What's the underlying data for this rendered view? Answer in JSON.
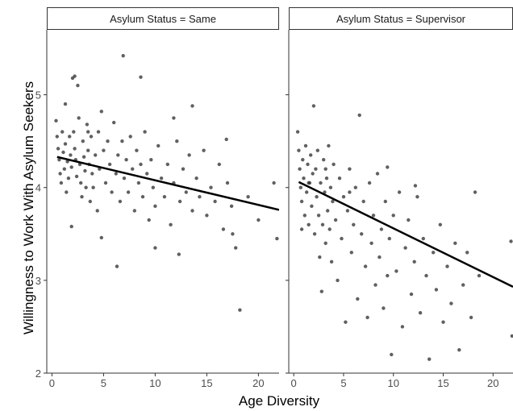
{
  "chart_data": {
    "type": "scatter",
    "xlabel": "Age Diversity",
    "ylabel": "Willingness to Work With Asylum Seekers",
    "xlim": [
      -0.5,
      22
    ],
    "ylim": [
      2,
      5.7
    ],
    "x_ticks": [
      "0",
      "5",
      "10",
      "15",
      "20"
    ],
    "y_ticks": [
      "2",
      "3",
      "4",
      "5"
    ],
    "grid": false,
    "point_color": "#333333",
    "line_color": "#000000",
    "panels": [
      {
        "label": "Asylum Status = Same",
        "fit_line": {
          "x": [
            0.5,
            22
          ],
          "y": [
            4.33,
            3.76
          ]
        },
        "points": [
          [
            0.4,
            4.72
          ],
          [
            0.5,
            4.55
          ],
          [
            0.6,
            4.42
          ],
          [
            0.7,
            4.3
          ],
          [
            0.8,
            4.15
          ],
          [
            0.9,
            4.05
          ],
          [
            1.0,
            4.6
          ],
          [
            1.1,
            4.38
          ],
          [
            1.2,
            4.2
          ],
          [
            1.3,
            4.47
          ],
          [
            1.4,
            3.95
          ],
          [
            1.5,
            4.28
          ],
          [
            1.6,
            4.1
          ],
          [
            1.7,
            4.55
          ],
          [
            1.8,
            4.35
          ],
          [
            1.9,
            4.22
          ],
          [
            2.0,
            5.18
          ],
          [
            2.1,
            4.6
          ],
          [
            2.2,
            4.42
          ],
          [
            2.3,
            4.3
          ],
          [
            2.4,
            4.12
          ],
          [
            2.5,
            5.1
          ],
          [
            2.6,
            4.75
          ],
          [
            2.7,
            4.25
          ],
          [
            2.8,
            4.05
          ],
          [
            2.9,
            3.9
          ],
          [
            3.0,
            4.5
          ],
          [
            3.1,
            4.33
          ],
          [
            3.2,
            4.18
          ],
          [
            3.3,
            4.0
          ],
          [
            3.4,
            4.68
          ],
          [
            3.5,
            4.4
          ],
          [
            3.6,
            4.25
          ],
          [
            3.7,
            3.85
          ],
          [
            3.8,
            4.55
          ],
          [
            3.9,
            4.15
          ],
          [
            4.0,
            4.0
          ],
          [
            4.2,
            4.35
          ],
          [
            4.4,
            3.75
          ],
          [
            4.5,
            4.6
          ],
          [
            4.6,
            4.2
          ],
          [
            4.8,
            4.82
          ],
          [
            5.0,
            4.4
          ],
          [
            5.2,
            4.05
          ],
          [
            5.4,
            4.5
          ],
          [
            5.6,
            4.25
          ],
          [
            5.8,
            3.95
          ],
          [
            6.0,
            4.7
          ],
          [
            6.2,
            4.15
          ],
          [
            6.4,
            4.35
          ],
          [
            6.6,
            3.85
          ],
          [
            6.8,
            4.5
          ],
          [
            7.0,
            4.1
          ],
          [
            7.2,
            4.3
          ],
          [
            7.4,
            3.95
          ],
          [
            7.6,
            4.55
          ],
          [
            7.8,
            4.2
          ],
          [
            8.0,
            3.75
          ],
          [
            8.2,
            4.4
          ],
          [
            8.4,
            4.05
          ],
          [
            8.6,
            4.25
          ],
          [
            8.8,
            3.9
          ],
          [
            9.0,
            4.6
          ],
          [
            9.2,
            4.15
          ],
          [
            9.4,
            3.65
          ],
          [
            9.6,
            4.3
          ],
          [
            9.8,
            4.0
          ],
          [
            10.0,
            3.8
          ],
          [
            10.3,
            4.45
          ],
          [
            10.6,
            4.1
          ],
          [
            10.9,
            3.9
          ],
          [
            11.2,
            4.25
          ],
          [
            11.5,
            3.6
          ],
          [
            11.8,
            4.05
          ],
          [
            12.1,
            4.5
          ],
          [
            12.4,
            3.85
          ],
          [
            12.7,
            4.2
          ],
          [
            13.0,
            3.95
          ],
          [
            13.3,
            4.35
          ],
          [
            13.6,
            3.75
          ],
          [
            14.0,
            4.1
          ],
          [
            14.3,
            3.9
          ],
          [
            14.7,
            4.4
          ],
          [
            15.0,
            3.7
          ],
          [
            15.4,
            4.0
          ],
          [
            15.8,
            3.85
          ],
          [
            16.2,
            4.25
          ],
          [
            16.6,
            3.55
          ],
          [
            17.0,
            4.05
          ],
          [
            17.4,
            3.8
          ],
          [
            17.8,
            3.35
          ],
          [
            18.2,
            2.68
          ],
          [
            19.0,
            3.9
          ],
          [
            20.0,
            3.65
          ],
          [
            21.5,
            4.05
          ],
          [
            21.8,
            3.45
          ],
          [
            6.9,
            5.42
          ],
          [
            2.2,
            5.2
          ],
          [
            1.9,
            3.58
          ],
          [
            12.3,
            3.28
          ],
          [
            16.9,
            4.52
          ],
          [
            8.6,
            5.19
          ],
          [
            13.6,
            4.88
          ],
          [
            4.8,
            3.46
          ],
          [
            6.3,
            3.15
          ],
          [
            10.0,
            3.35
          ],
          [
            17.5,
            3.5
          ],
          [
            11.8,
            4.75
          ],
          [
            1.3,
            4.9
          ],
          [
            3.5,
            4.6
          ]
        ]
      },
      {
        "label": "Asylum Status = Supervisor",
        "fit_line": {
          "x": [
            0.5,
            22
          ],
          "y": [
            4.06,
            2.93
          ]
        },
        "points": [
          [
            0.4,
            4.6
          ],
          [
            0.5,
            4.4
          ],
          [
            0.6,
            4.2
          ],
          [
            0.7,
            4.0
          ],
          [
            0.8,
            3.85
          ],
          [
            0.9,
            4.3
          ],
          [
            1.0,
            4.1
          ],
          [
            1.1,
            3.7
          ],
          [
            1.2,
            4.45
          ],
          [
            1.3,
            3.95
          ],
          [
            1.4,
            4.25
          ],
          [
            1.5,
            3.6
          ],
          [
            1.6,
            4.05
          ],
          [
            1.7,
            4.35
          ],
          [
            1.8,
            3.8
          ],
          [
            1.9,
            4.15
          ],
          [
            2.0,
            4.88
          ],
          [
            2.1,
            3.5
          ],
          [
            2.2,
            4.2
          ],
          [
            2.3,
            3.9
          ],
          [
            2.4,
            4.4
          ],
          [
            2.5,
            3.7
          ],
          [
            2.6,
            3.25
          ],
          [
            2.7,
            4.05
          ],
          [
            2.8,
            2.88
          ],
          [
            2.9,
            3.6
          ],
          [
            3.0,
            4.3
          ],
          [
            3.1,
            3.95
          ],
          [
            3.2,
            3.4
          ],
          [
            3.3,
            4.1
          ],
          [
            3.4,
            3.75
          ],
          [
            3.5,
            4.45
          ],
          [
            3.6,
            3.55
          ],
          [
            3.7,
            4.0
          ],
          [
            3.8,
            3.2
          ],
          [
            3.9,
            3.85
          ],
          [
            4.0,
            4.25
          ],
          [
            4.2,
            3.65
          ],
          [
            4.4,
            3.0
          ],
          [
            4.6,
            4.1
          ],
          [
            4.8,
            3.45
          ],
          [
            5.0,
            3.9
          ],
          [
            5.2,
            2.55
          ],
          [
            5.4,
            3.75
          ],
          [
            5.6,
            4.2
          ],
          [
            5.8,
            3.3
          ],
          [
            6.0,
            3.6
          ],
          [
            6.2,
            4.0
          ],
          [
            6.4,
            2.8
          ],
          [
            6.6,
            4.78
          ],
          [
            6.8,
            3.5
          ],
          [
            7.0,
            3.85
          ],
          [
            7.2,
            3.15
          ],
          [
            7.4,
            2.6
          ],
          [
            7.6,
            4.05
          ],
          [
            7.8,
            3.4
          ],
          [
            8.0,
            3.7
          ],
          [
            8.2,
            2.95
          ],
          [
            8.4,
            4.15
          ],
          [
            8.6,
            3.25
          ],
          [
            8.8,
            3.55
          ],
          [
            9.0,
            2.7
          ],
          [
            9.2,
            3.85
          ],
          [
            9.4,
            3.05
          ],
          [
            9.6,
            3.45
          ],
          [
            9.8,
            2.2
          ],
          [
            10.0,
            3.7
          ],
          [
            10.3,
            3.1
          ],
          [
            10.6,
            3.95
          ],
          [
            10.9,
            2.5
          ],
          [
            11.2,
            3.35
          ],
          [
            11.5,
            3.65
          ],
          [
            11.8,
            2.85
          ],
          [
            12.1,
            3.2
          ],
          [
            12.4,
            3.9
          ],
          [
            12.7,
            2.65
          ],
          [
            13.0,
            3.45
          ],
          [
            13.3,
            3.05
          ],
          [
            13.6,
            2.15
          ],
          [
            14.0,
            3.3
          ],
          [
            14.3,
            2.9
          ],
          [
            14.7,
            3.6
          ],
          [
            15.0,
            2.55
          ],
          [
            15.4,
            3.15
          ],
          [
            15.8,
            2.75
          ],
          [
            16.2,
            3.4
          ],
          [
            16.6,
            2.25
          ],
          [
            17.0,
            2.95
          ],
          [
            17.4,
            3.3
          ],
          [
            17.8,
            2.6
          ],
          [
            18.2,
            3.95
          ],
          [
            18.6,
            3.05
          ],
          [
            21.8,
            3.42
          ],
          [
            21.9,
            2.4
          ],
          [
            1.5,
            4.05
          ],
          [
            3.2,
            4.2
          ],
          [
            5.6,
            3.95
          ],
          [
            9.4,
            4.22
          ],
          [
            12.2,
            4.02
          ],
          [
            0.8,
            3.55
          ]
        ]
      }
    ]
  }
}
